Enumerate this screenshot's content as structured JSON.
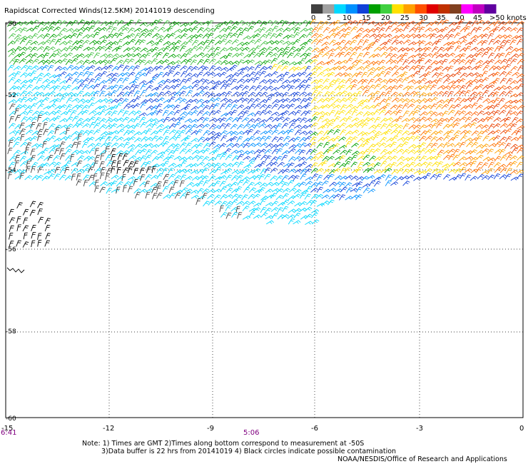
{
  "title": "Rapidscat Corrected Winds(12.5KM) 20141019 descending",
  "legend": {
    "colors": [
      "#404040",
      "#a0a0a0",
      "#00d8ff",
      "#0090ff",
      "#1040d8",
      "#00a000",
      "#40d040",
      "#ffe000",
      "#ffa000",
      "#ff5000",
      "#e00000",
      "#c03000",
      "#804020",
      "#ff00ff",
      "#c000c0",
      "#6000a0"
    ],
    "labels": [
      "0",
      "5",
      "10",
      "15",
      "20",
      "25",
      "30",
      "35",
      "40",
      "45",
      ">50 knots"
    ]
  },
  "axes": {
    "x_ticks": [
      "-15",
      "-12",
      "-9",
      "-6",
      "-3",
      "0"
    ],
    "y_ticks": [
      "-50",
      "-52",
      "-54",
      "-56",
      "-58",
      "-60"
    ]
  },
  "times": {
    "left": "6:41",
    "mid": "5:06",
    "color": "#800080"
  },
  "notes": {
    "line1": "Note: 1) Times are GMT 2)Times along bottom correspond to measurement at -50S",
    "line2": "3)Data buffer is 22 hrs from 20141019 4) Black circles indicate possible contamination",
    "line3": "NOAA/NESDIS/Office of Research and Applications"
  }
}
